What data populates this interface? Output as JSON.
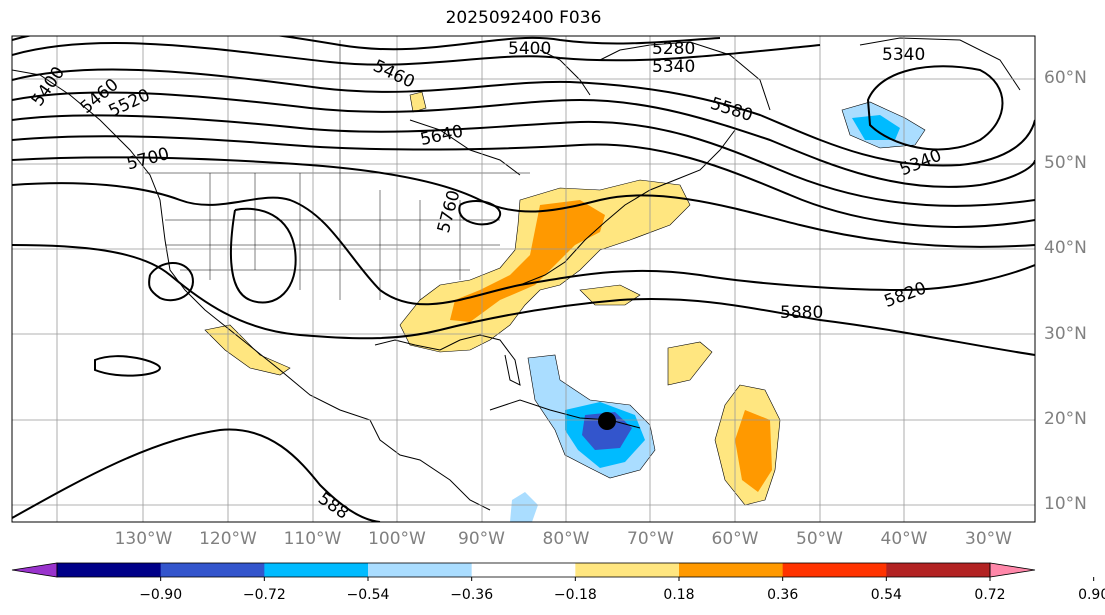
{
  "title": "2025092400 F036",
  "lat_labels": [
    {
      "text": "60°N",
      "lat": 60
    },
    {
      "text": "50°N",
      "lat": 50
    },
    {
      "text": "40°N",
      "lat": 40
    },
    {
      "text": "30°N",
      "lat": 30
    },
    {
      "text": "20°N",
      "lat": 20
    },
    {
      "text": "10°N",
      "lat": 10
    }
  ],
  "lon_labels": [
    {
      "text": "130°W",
      "lon": -130
    },
    {
      "text": "120°W",
      "lon": -120
    },
    {
      "text": "110°W",
      "lon": -110
    },
    {
      "text": "100°W",
      "lon": -100
    },
    {
      "text": "90°W",
      "lon": -90
    },
    {
      "text": "80°W",
      "lon": -80
    },
    {
      "text": "70°W",
      "lon": -70
    },
    {
      "text": "60°W",
      "lon": -60
    },
    {
      "text": "50°W",
      "lon": -50
    },
    {
      "text": "40°W",
      "lon": -40
    },
    {
      "text": "30°W",
      "lon": -30
    }
  ],
  "contour_labels": [
    "5400",
    "5460",
    "5520",
    "5700",
    "5460",
    "5640",
    "5400",
    "5280",
    "5340",
    "5340",
    "5580",
    "5340",
    "5760",
    "5880",
    "5820",
    "588"
  ],
  "colorbar": {
    "colors": [
      "#9933cc",
      "#000088",
      "#3355cc",
      "#00bbff",
      "#aaddff",
      "#ffffff",
      "#ffe680",
      "#ff9900",
      "#ff3300",
      "#b22222",
      "#ff88aa"
    ],
    "ticks": [
      "−0.90",
      "−0.72",
      "−0.54",
      "−0.36",
      "−0.18",
      "0.18",
      "0.36",
      "0.54",
      "0.72",
      "0.90"
    ]
  },
  "storm_marker": {
    "name": "storm-center-marker",
    "lon": -70,
    "lat": 19.7
  }
}
